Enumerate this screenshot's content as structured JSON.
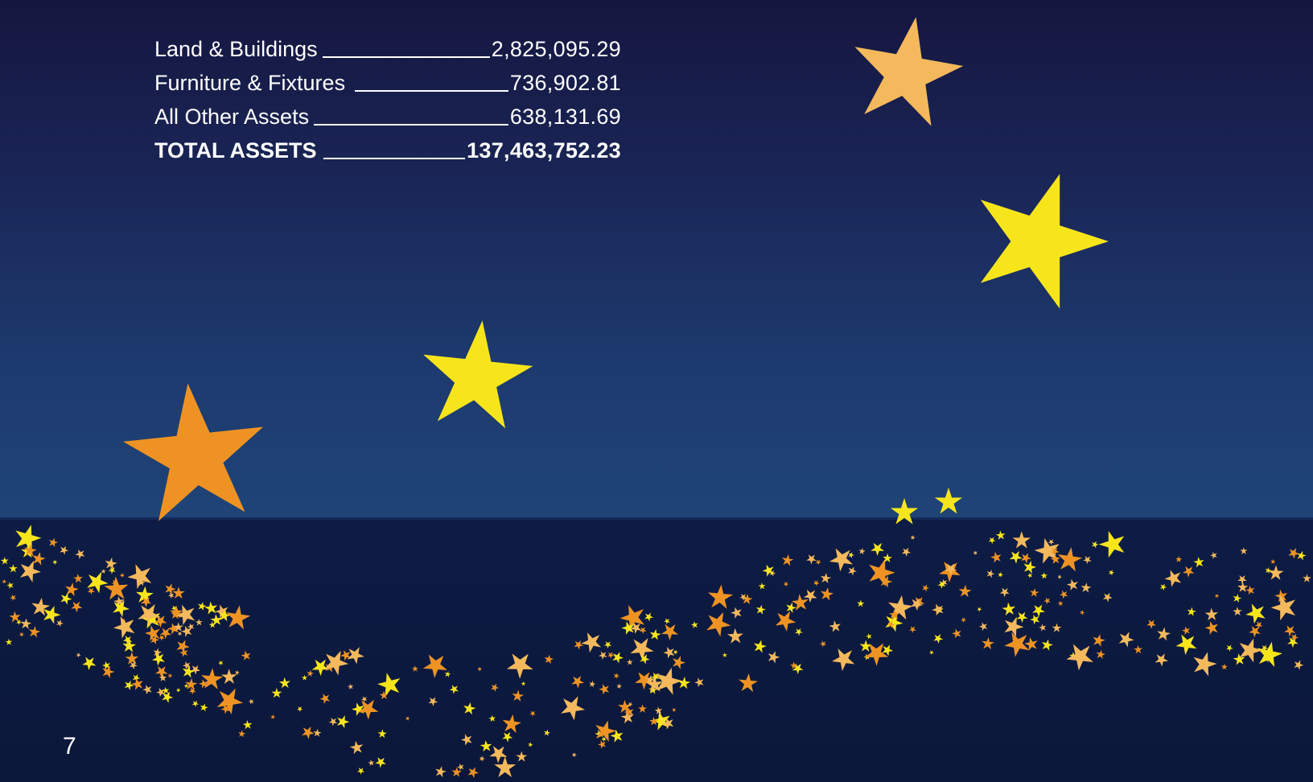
{
  "assets": {
    "rows": [
      {
        "label": "Land & Buildings",
        "value": "2,825,095.29"
      },
      {
        "label": "Furniture & Fixtures",
        "value": "736,902.81"
      },
      {
        "label": "All Other Assets",
        "value": "638,131.69"
      }
    ],
    "total": {
      "label": "TOTAL ASSETS",
      "value": "137,463,752.23"
    }
  },
  "page_number": "7",
  "colors": {
    "star_yellow": "#f7e51c",
    "star_orange": "#ee9323",
    "star_peach": "#f4b95c",
    "text": "#ffffff"
  }
}
